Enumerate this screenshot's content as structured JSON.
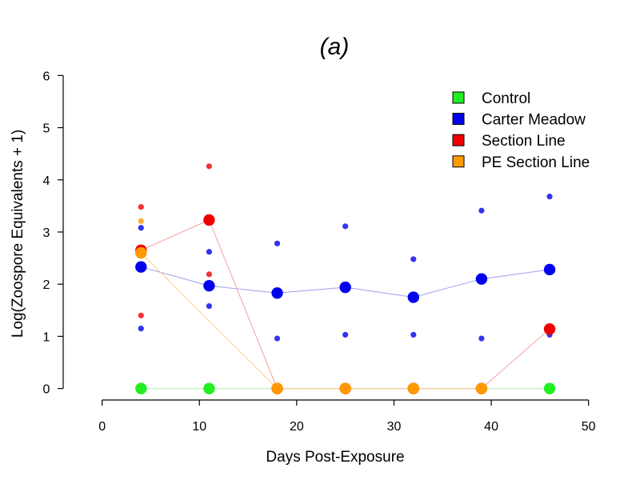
{
  "chart_data": {
    "type": "scatter",
    "title": "(a)",
    "xlabel": "Days Post-Exposure",
    "ylabel": "Log(Zoospore Equivalents + 1)",
    "xlim": [
      -4,
      52
    ],
    "ylim": [
      -0.22,
      6.22
    ],
    "xticks": [
      0,
      10,
      20,
      30,
      40,
      50
    ],
    "yticks": [
      0,
      1,
      2,
      3,
      4,
      5,
      6
    ],
    "grid": false,
    "legend_position": "top-right",
    "series": [
      {
        "name": "Control",
        "color": "#22ee22",
        "line_color": "#a8f0a8",
        "means": [
          [
            4,
            0
          ],
          [
            11,
            0
          ],
          [
            46,
            0
          ]
        ],
        "points": []
      },
      {
        "name": "Carter Meadow",
        "color": "#0000ee",
        "line_color": "#9f9ff0",
        "means": [
          [
            4,
            2.33
          ],
          [
            11,
            1.97
          ],
          [
            18,
            1.83
          ],
          [
            25,
            1.94
          ],
          [
            32,
            1.75
          ],
          [
            39,
            2.1
          ],
          [
            46,
            2.28
          ]
        ],
        "points": [
          [
            4,
            3.08
          ],
          [
            4,
            2.31
          ],
          [
            4,
            1.15
          ],
          [
            11,
            2.62
          ],
          [
            11,
            1.58
          ],
          [
            18,
            2.78
          ],
          [
            18,
            0.96
          ],
          [
            25,
            3.11
          ],
          [
            25,
            1.03
          ],
          [
            32,
            2.48
          ],
          [
            32,
            1.03
          ],
          [
            39,
            3.41
          ],
          [
            39,
            0.96
          ],
          [
            46,
            3.68
          ],
          [
            46,
            1.03
          ]
        ]
      },
      {
        "name": "Section Line",
        "color": "#ee0000",
        "line_color": "#f4a0a0",
        "means": [
          [
            4,
            2.65
          ],
          [
            11,
            3.23
          ],
          [
            18,
            0
          ],
          [
            25,
            0
          ],
          [
            32,
            0
          ],
          [
            39,
            0
          ],
          [
            46,
            1.14
          ]
        ],
        "points": [
          [
            4,
            3.48
          ],
          [
            4,
            1.4
          ],
          [
            11,
            4.26
          ],
          [
            11,
            2.19
          ]
        ]
      },
      {
        "name": "PE Section Line",
        "color": "#ff9900",
        "line_color": "#f5d090",
        "means": [
          [
            4,
            2.6
          ],
          [
            18,
            0
          ],
          [
            25,
            0
          ],
          [
            32,
            0
          ],
          [
            39,
            0
          ]
        ],
        "points": [
          [
            4,
            3.21
          ]
        ]
      }
    ]
  }
}
